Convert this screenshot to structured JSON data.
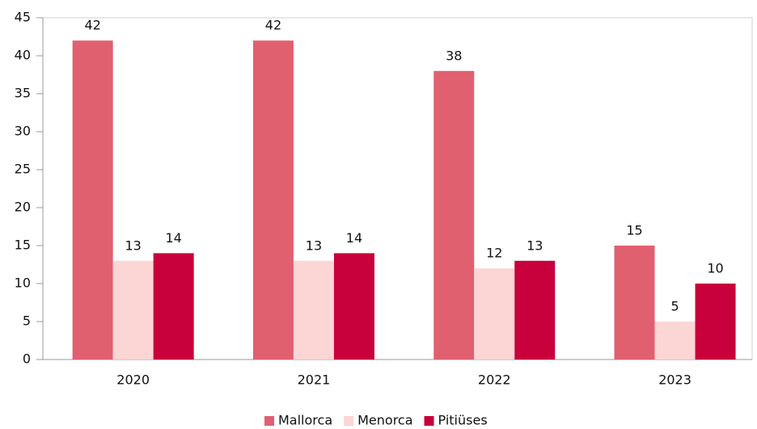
{
  "chart_data": {
    "type": "bar",
    "categories": [
      "2020",
      "2021",
      "2022",
      "2023"
    ],
    "series": [
      {
        "name": "Mallorca",
        "color": "#e06070",
        "values": [
          42,
          42,
          38,
          15
        ]
      },
      {
        "name": "Menorca",
        "color": "#fcd5d5",
        "values": [
          13,
          13,
          12,
          5
        ]
      },
      {
        "name": "Pitiüses",
        "color": "#c8003c",
        "values": [
          14,
          14,
          13,
          10
        ]
      }
    ],
    "ylim": [
      0,
      45
    ],
    "yticks": [
      0,
      5,
      10,
      15,
      20,
      25,
      30,
      35,
      40,
      45
    ],
    "grid": false,
    "legend": "bottom"
  }
}
